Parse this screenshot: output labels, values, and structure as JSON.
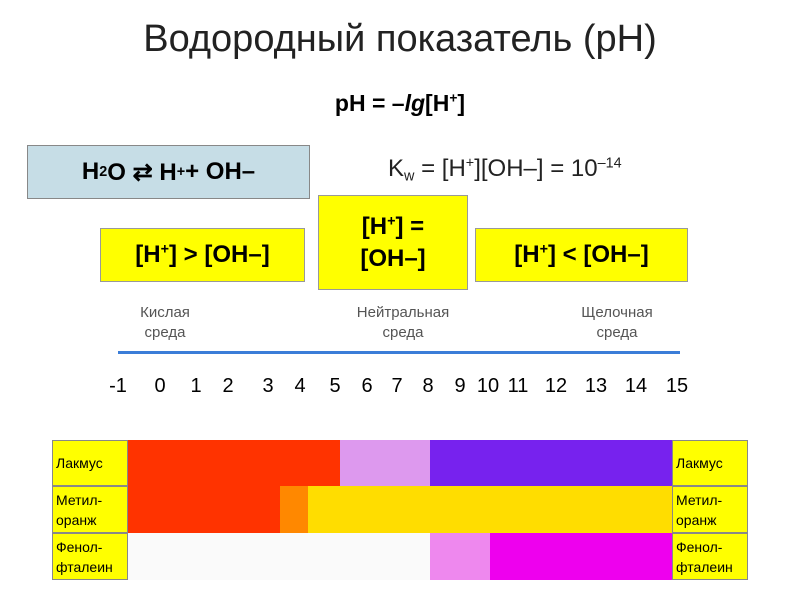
{
  "title": "Водородный показатель (pH)",
  "formula": [
    "pH = –",
    "lg",
    "[H",
    "+",
    "]"
  ],
  "equation": [
    "H",
    "2",
    "O ⇄ H",
    "+",
    " + OH–"
  ],
  "kw": [
    "K",
    "w",
    " = [H",
    "+",
    "][OH–] = ",
    "10",
    "–14"
  ],
  "boxes": [
    [
      "[H",
      "+",
      "] > [OH–]"
    ],
    [
      "[H",
      "+",
      "] = [OH–]"
    ],
    [
      "[H",
      "+",
      "] < [OH–]"
    ]
  ],
  "media": [
    [
      "Кислая",
      "среда"
    ],
    [
      "Нейтральная",
      "среда"
    ],
    [
      "Щелочная",
      "среда"
    ]
  ],
  "scale": [
    "-1",
    "0",
    "1",
    "2",
    "3",
    "4",
    "5",
    "6",
    "7",
    "8",
    "9",
    "10",
    "11",
    "12",
    "13",
    "14",
    "15"
  ],
  "indicators": [
    [
      "Лакмус"
    ],
    [
      "Метил-",
      "оранж"
    ],
    [
      "Фенол-",
      "фталеин"
    ]
  ]
}
